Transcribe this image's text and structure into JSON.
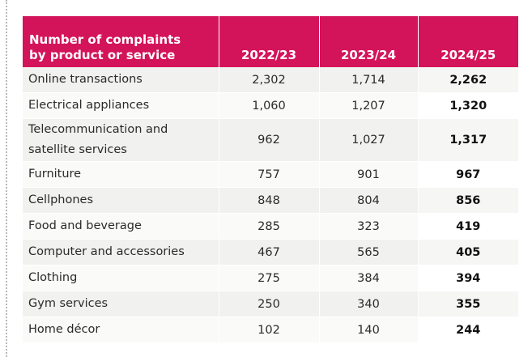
{
  "table": {
    "header": {
      "label_line1": "Number of complaints",
      "label_line2": "by product or service",
      "years": [
        "2022/23",
        "2023/24",
        "2024/25"
      ]
    },
    "rows": [
      {
        "label": "Online transactions",
        "values": [
          "2,302",
          "1,714",
          "2,262"
        ]
      },
      {
        "label": "Electrical appliances",
        "values": [
          "1,060",
          "1,207",
          "1,320"
        ]
      },
      {
        "label": "Telecommunication and satellite services",
        "label_line1": "Telecommunication and",
        "label_line2": "satellite services",
        "values": [
          "962",
          "1,027",
          "1,317"
        ]
      },
      {
        "label": "Furniture",
        "values": [
          "757",
          "901",
          "967"
        ]
      },
      {
        "label": "Cellphones",
        "values": [
          "848",
          "804",
          "856"
        ]
      },
      {
        "label": "Food and beverage",
        "values": [
          "285",
          "323",
          "419"
        ]
      },
      {
        "label": "Computer and accessories",
        "values": [
          "467",
          "565",
          "405"
        ]
      },
      {
        "label": "Clothing",
        "values": [
          "275",
          "384",
          "394"
        ]
      },
      {
        "label": "Gym services",
        "values": [
          "250",
          "340",
          "355"
        ]
      },
      {
        "label": "Home décor",
        "values": [
          "102",
          "140",
          "244"
        ]
      }
    ],
    "colors": {
      "header_bg": "#d4145a",
      "header_text": "#ffffff"
    }
  }
}
